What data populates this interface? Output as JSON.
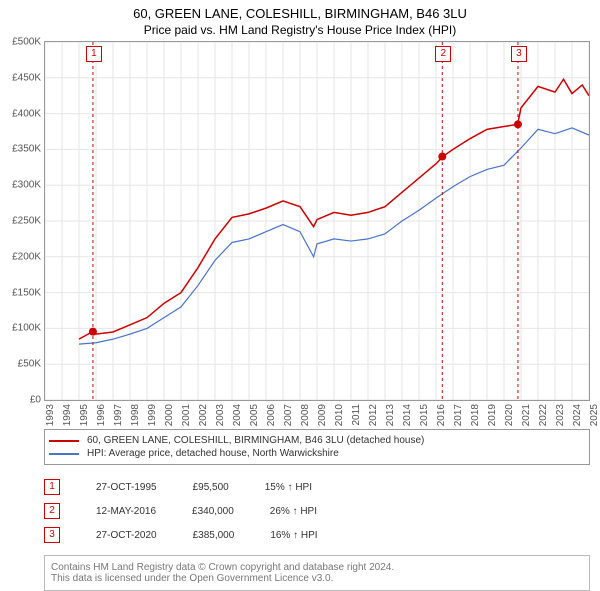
{
  "title": "60, GREEN LANE, COLESHILL, BIRMINGHAM, B46 3LU",
  "subtitle": "Price paid vs. HM Land Registry's House Price Index (HPI)",
  "chart": {
    "type": "line",
    "background_color": "#ffffff",
    "grid_color": "#e6e6e6",
    "axis_color": "#999999",
    "x_years": [
      1993,
      1994,
      1995,
      1996,
      1997,
      1998,
      1999,
      2000,
      2001,
      2002,
      2003,
      2004,
      2005,
      2006,
      2007,
      2008,
      2009,
      2010,
      2011,
      2012,
      2013,
      2014,
      2015,
      2016,
      2017,
      2018,
      2019,
      2020,
      2021,
      2022,
      2023,
      2024,
      2025
    ],
    "y_min": 0,
    "y_max": 500000,
    "y_step": 50000,
    "y_prefix": "£",
    "y_format": "K",
    "series": [
      {
        "name": "60, GREEN LANE, COLESHILL, BIRMINGHAM, B46 3LU (detached house)",
        "color": "#cc0000",
        "line_width": 1.5,
        "points": [
          [
            1995,
            85000
          ],
          [
            1995.8,
            95500
          ],
          [
            1996,
            92000
          ],
          [
            1997,
            95000
          ],
          [
            1998,
            105000
          ],
          [
            1999,
            115000
          ],
          [
            2000,
            135000
          ],
          [
            2001,
            150000
          ],
          [
            2002,
            185000
          ],
          [
            2003,
            225000
          ],
          [
            2004,
            255000
          ],
          [
            2005,
            260000
          ],
          [
            2006,
            268000
          ],
          [
            2007,
            278000
          ],
          [
            2008,
            270000
          ],
          [
            2008.8,
            242000
          ],
          [
            2009,
            252000
          ],
          [
            2010,
            262000
          ],
          [
            2011,
            258000
          ],
          [
            2012,
            262000
          ],
          [
            2013,
            270000
          ],
          [
            2014,
            290000
          ],
          [
            2015,
            310000
          ],
          [
            2016,
            330000
          ],
          [
            2016.4,
            340000
          ],
          [
            2017,
            350000
          ],
          [
            2018,
            365000
          ],
          [
            2019,
            378000
          ],
          [
            2020,
            382000
          ],
          [
            2020.8,
            385000
          ],
          [
            2021,
            408000
          ],
          [
            2022,
            438000
          ],
          [
            2023,
            430000
          ],
          [
            2023.5,
            448000
          ],
          [
            2024,
            428000
          ],
          [
            2024.6,
            440000
          ],
          [
            2025,
            425000
          ]
        ]
      },
      {
        "name": "HPI: Average price, detached house, North Warwickshire",
        "color": "#4a74c9",
        "line_width": 1.2,
        "points": [
          [
            1995,
            78000
          ],
          [
            1996,
            80000
          ],
          [
            1997,
            85000
          ],
          [
            1998,
            92000
          ],
          [
            1999,
            100000
          ],
          [
            2000,
            115000
          ],
          [
            2001,
            130000
          ],
          [
            2002,
            160000
          ],
          [
            2003,
            195000
          ],
          [
            2004,
            220000
          ],
          [
            2005,
            225000
          ],
          [
            2006,
            235000
          ],
          [
            2007,
            245000
          ],
          [
            2008,
            235000
          ],
          [
            2008.8,
            200000
          ],
          [
            2009,
            218000
          ],
          [
            2010,
            225000
          ],
          [
            2011,
            222000
          ],
          [
            2012,
            225000
          ],
          [
            2013,
            232000
          ],
          [
            2014,
            250000
          ],
          [
            2015,
            265000
          ],
          [
            2016,
            282000
          ],
          [
            2017,
            298000
          ],
          [
            2018,
            312000
          ],
          [
            2019,
            322000
          ],
          [
            2020,
            328000
          ],
          [
            2021,
            352000
          ],
          [
            2022,
            378000
          ],
          [
            2023,
            372000
          ],
          [
            2024,
            380000
          ],
          [
            2025,
            370000
          ]
        ]
      }
    ],
    "markers": [
      {
        "num": "1",
        "date": "27-OCT-1995",
        "price": "£95,500",
        "delta": "15% ↑ HPI",
        "x": 1995.82,
        "y": 95500
      },
      {
        "num": "2",
        "date": "12-MAY-2016",
        "price": "£340,000",
        "delta": "26% ↑ HPI",
        "x": 2016.37,
        "y": 340000
      },
      {
        "num": "3",
        "date": "27-OCT-2020",
        "price": "£385,000",
        "delta": "16% ↑ HPI",
        "x": 2020.82,
        "y": 385000
      }
    ],
    "marker_color": "#cc0000",
    "marker_box_bg": "#ffffff",
    "label_fontsize": 10
  },
  "footer": {
    "line1": "Contains HM Land Registry data © Crown copyright and database right 2024.",
    "line2": "This data is licensed under the Open Government Licence v3.0."
  }
}
